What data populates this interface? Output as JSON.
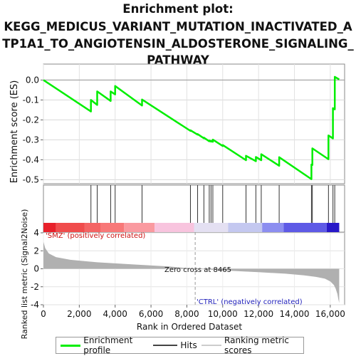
{
  "title_lines": [
    "Enrichment plot:",
    "KEGG_MEDICUS_VARIANT_MUTATION_INACTIVATED_A",
    "TP1A1_TO_ANGIOTENSIN_ALDOSTERONE_SIGNALING_",
    "PATHWAY"
  ],
  "chart_data": {
    "type": "line",
    "title": "Enrichment plot: KEGG_MEDICUS_VARIANT_MUTATION_INACTIVATED_ATP1A1_TO_ANGIOTENSIN_ALDOSTERONE_SIGNALING_PATHWAY",
    "xlabel": "Rank in Ordered Dataset",
    "xlim": [
      0,
      16800
    ],
    "x_ticks": [
      0,
      2000,
      4000,
      6000,
      8000,
      10000,
      12000,
      14000,
      16000
    ],
    "x_tick_labels": [
      "0",
      "2,000",
      "4,000",
      "6,000",
      "8,000",
      "10,000",
      "12,000",
      "14,000",
      "16,000"
    ],
    "es_panel": {
      "ylabel": "Enrichment score (ES)",
      "ylim": [
        -0.52,
        0.08
      ],
      "y_ticks": [
        0.0,
        -0.1,
        -0.2,
        -0.3,
        -0.4,
        -0.5
      ],
      "y_tick_labels": [
        "0.0",
        "-0.1",
        "-0.2",
        "-0.3",
        "-0.4",
        "-0.5"
      ],
      "series": [
        {
          "name": "Enrichment profile",
          "color": "#00ee00",
          "points": [
            [
              0,
              0.0
            ],
            [
              2650,
              -0.158
            ],
            [
              2650,
              -0.1
            ],
            [
              3000,
              -0.125
            ],
            [
              3000,
              -0.057
            ],
            [
              3750,
              -0.105
            ],
            [
              3750,
              -0.057
            ],
            [
              4000,
              -0.072
            ],
            [
              4000,
              -0.03
            ],
            [
              5500,
              -0.128
            ],
            [
              5500,
              -0.098
            ],
            [
              8200,
              -0.255
            ],
            [
              8200,
              -0.252
            ],
            [
              8600,
              -0.274
            ],
            [
              8600,
              -0.271
            ],
            [
              8950,
              -0.292
            ],
            [
              8950,
              -0.289
            ],
            [
              9250,
              -0.307
            ],
            [
              9250,
              -0.303
            ],
            [
              9350,
              -0.309
            ],
            [
              9350,
              -0.305
            ],
            [
              9450,
              -0.31
            ],
            [
              9450,
              -0.299
            ],
            [
              10000,
              -0.331
            ],
            [
              10000,
              -0.326
            ],
            [
              11300,
              -0.402
            ],
            [
              11300,
              -0.38
            ],
            [
              11850,
              -0.407
            ],
            [
              11850,
              -0.386
            ],
            [
              12150,
              -0.402
            ],
            [
              12150,
              -0.372
            ],
            [
              13150,
              -0.43
            ],
            [
              13150,
              -0.387
            ],
            [
              14950,
              -0.497
            ],
            [
              14950,
              -0.424
            ],
            [
              15000,
              -0.426
            ],
            [
              15000,
              -0.343
            ],
            [
              15900,
              -0.397
            ],
            [
              15900,
              -0.278
            ],
            [
              16150,
              -0.293
            ],
            [
              16150,
              -0.141
            ],
            [
              16250,
              -0.147
            ],
            [
              16250,
              0.016
            ],
            [
              16500,
              0.003
            ]
          ]
        }
      ]
    },
    "hits": [
      2650,
      3000,
      3750,
      4000,
      5500,
      8200,
      8600,
      8950,
      9250,
      9350,
      9450,
      10000,
      11300,
      11850,
      12150,
      13150,
      14950,
      15000,
      15900,
      16150,
      16250
    ],
    "heatmap_bar": {
      "segments": [
        {
          "from": 0,
          "to": 700,
          "color": "#e8202a"
        },
        {
          "from": 700,
          "to": 2300,
          "color": "#f04c4c"
        },
        {
          "from": 2300,
          "to": 3200,
          "color": "#f46464"
        },
        {
          "from": 3200,
          "to": 4500,
          "color": "#f87878"
        },
        {
          "from": 4500,
          "to": 6200,
          "color": "#fa9aa0"
        },
        {
          "from": 6200,
          "to": 8400,
          "color": "#f8c4de"
        },
        {
          "from": 8400,
          "to": 10300,
          "color": "#e4e0f2"
        },
        {
          "from": 10300,
          "to": 12200,
          "color": "#c4c8f0"
        },
        {
          "from": 12200,
          "to": 13400,
          "color": "#8c8ef0"
        },
        {
          "from": 13400,
          "to": 15800,
          "color": "#5e5ae6"
        },
        {
          "from": 15800,
          "to": 16500,
          "color": "#2818c8"
        }
      ]
    },
    "metric_panel": {
      "ylabel": "Ranked list metric (Signal2Noise)",
      "ylim": [
        -4,
        4
      ],
      "y_ticks": [
        4,
        2,
        0,
        -2,
        -4
      ],
      "y_tick_labels": [
        "4",
        "2",
        "0",
        "-2",
        "-4"
      ],
      "fill_color": "#b0b0b0",
      "x": [
        0,
        100,
        300,
        700,
        1500,
        3000,
        5000,
        7000,
        8465,
        10000,
        12000,
        13500,
        14500,
        15200,
        15700,
        16000,
        16200,
        16300,
        16400,
        16450,
        16500
      ],
      "y": [
        3.0,
        2.3,
        1.7,
        1.3,
        1.0,
        0.72,
        0.48,
        0.25,
        0.0,
        -0.18,
        -0.38,
        -0.55,
        -0.72,
        -0.9,
        -1.1,
        -1.4,
        -1.8,
        -2.2,
        -2.8,
        -3.4,
        -3.8
      ],
      "zero_cross_label": "Zero cross at 8465",
      "zero_cross": 8465,
      "pos_label": "'SMZ' (positively correlated)",
      "neg_label": "'CTRL' (negatively correlated)"
    },
    "legend": {
      "placement": "bottom",
      "entries": [
        {
          "label": "Enrichment profile",
          "color": "#00ee00"
        },
        {
          "label": "Hits",
          "color": "#333333"
        },
        {
          "label": "Ranking metric scores",
          "color": "#cccccc"
        }
      ]
    }
  }
}
